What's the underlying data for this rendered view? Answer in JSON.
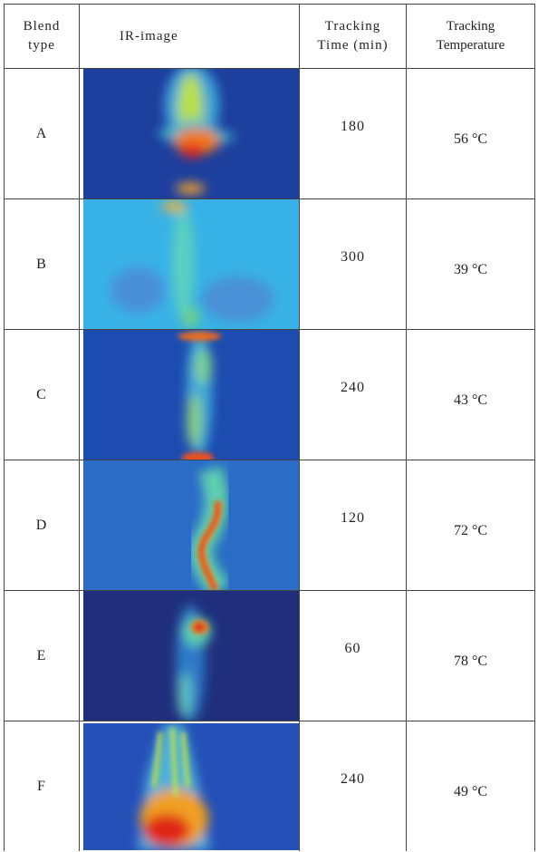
{
  "table": {
    "header": [
      [
        "Blend",
        "type"
      ],
      [
        "IR-image"
      ],
      [
        "Tracking",
        "Time (min)"
      ],
      [
        "Tracking",
        "Temperature"
      ]
    ],
    "rows": [
      [
        "A",
        180,
        "56 °C"
      ],
      [
        "B",
        300,
        "39 °C"
      ],
      [
        "C",
        240,
        "43 °C"
      ],
      [
        "D",
        120,
        "72 °C"
      ],
      [
        "E",
        60,
        "78 °C"
      ],
      [
        "F",
        240,
        "49 °C"
      ]
    ]
  }
}
